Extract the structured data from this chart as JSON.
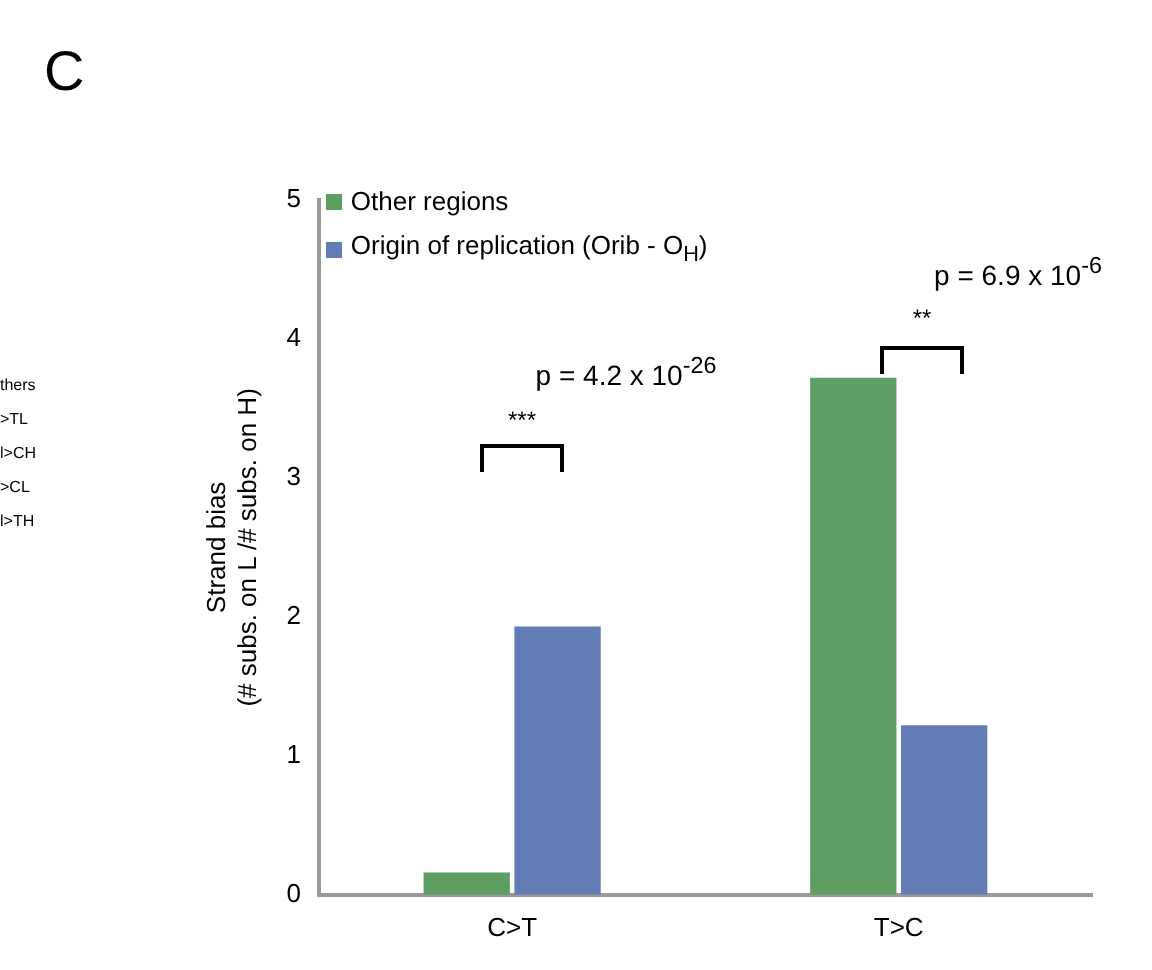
{
  "chart_data": {
    "type": "bar",
    "ylabel": "Strand bias\n(# subs. on L /# subs. on H)",
    "categories": [
      "C>T",
      "T>C"
    ],
    "series": [
      {
        "name": "Other regions",
        "color": "#5e9e63",
        "values": [
          0.16,
          3.72
        ]
      },
      {
        "name": "Origin of replication (Orib - O$_{H}$)",
        "color": "#627cb5",
        "values": [
          1.93,
          1.22
        ]
      }
    ],
    "ylim": [
      0,
      5
    ],
    "yticks": [
      0,
      1,
      2,
      3,
      4,
      5
    ],
    "grid": false,
    "legend": "top left",
    "annotations": [
      "C",
      "thers",
      ">TL",
      "l>CH",
      ">CL",
      "l>TH",
      "***",
      "p = 4.2 x 10$^{-26}$",
      "**",
      "p = 6.9 x 10$^{-6}$"
    ]
  }
}
